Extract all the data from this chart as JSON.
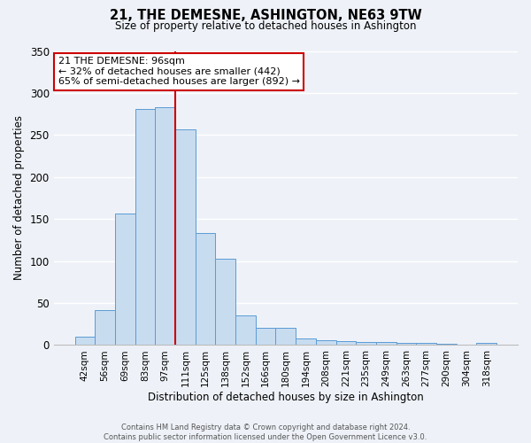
{
  "title": "21, THE DEMESNE, ASHINGTON, NE63 9TW",
  "subtitle": "Size of property relative to detached houses in Ashington",
  "xlabel": "Distribution of detached houses by size in Ashington",
  "ylabel": "Number of detached properties",
  "bar_color": "#c8dcf0",
  "bar_edge_color": "#5b9bd5",
  "background_color": "#eef2f8",
  "grid_color": "#ffffff",
  "categories": [
    "42sqm",
    "56sqm",
    "69sqm",
    "83sqm",
    "97sqm",
    "111sqm",
    "125sqm",
    "138sqm",
    "152sqm",
    "166sqm",
    "180sqm",
    "194sqm",
    "208sqm",
    "221sqm",
    "235sqm",
    "249sqm",
    "263sqm",
    "277sqm",
    "290sqm",
    "304sqm",
    "318sqm"
  ],
  "values": [
    10,
    42,
    157,
    281,
    283,
    257,
    133,
    103,
    35,
    20,
    21,
    8,
    6,
    5,
    4,
    4,
    3,
    3,
    2,
    0,
    3
  ],
  "vline_position": 4.5,
  "vline_color": "#cc0000",
  "annotation_title": "21 THE DEMESNE: 96sqm",
  "annotation_line1": "← 32% of detached houses are smaller (442)",
  "annotation_line2": "65% of semi-detached houses are larger (892) →",
  "annotation_box_color": "#ffffff",
  "annotation_box_edge": "#cc0000",
  "ylim": [
    0,
    350
  ],
  "yticks": [
    0,
    50,
    100,
    150,
    200,
    250,
    300,
    350
  ],
  "footnote1": "Contains HM Land Registry data © Crown copyright and database right 2024.",
  "footnote2": "Contains public sector information licensed under the Open Government Licence v3.0."
}
